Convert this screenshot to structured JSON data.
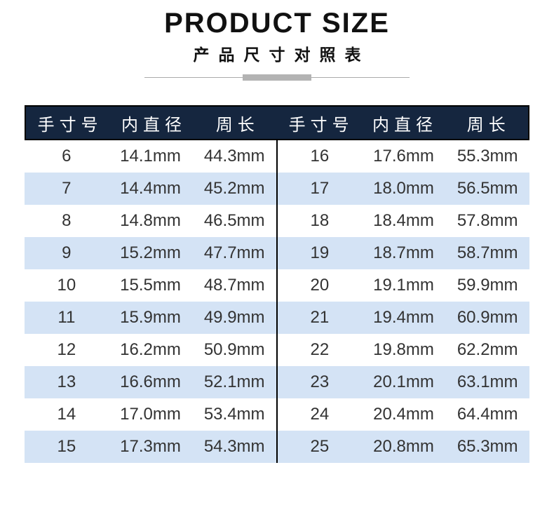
{
  "header": {
    "title": "PRODUCT SIZE",
    "subtitle": "产品尺寸对照表"
  },
  "colors": {
    "header_bg": "#15263f",
    "header_text": "#ffffff",
    "row_alt_bg": "#d4e3f5",
    "row_bg": "#ffffff",
    "body_text": "#333333",
    "table_border": "#000000",
    "divider_gray": "#b3b3b3"
  },
  "chart_data": {
    "type": "table",
    "title": "PRODUCT SIZE",
    "subtitle": "产品尺寸对照表",
    "columns": [
      "手寸号",
      "内直径",
      "周长"
    ],
    "left_rows": [
      [
        "6",
        "14.1mm",
        "44.3mm"
      ],
      [
        "7",
        "14.4mm",
        "45.2mm"
      ],
      [
        "8",
        "14.8mm",
        "46.5mm"
      ],
      [
        "9",
        "15.2mm",
        "47.7mm"
      ],
      [
        "10",
        "15.5mm",
        "48.7mm"
      ],
      [
        "11",
        "15.9mm",
        "49.9mm"
      ],
      [
        "12",
        "16.2mm",
        "50.9mm"
      ],
      [
        "13",
        "16.6mm",
        "52.1mm"
      ],
      [
        "14",
        "17.0mm",
        "53.4mm"
      ],
      [
        "15",
        "17.3mm",
        "54.3mm"
      ]
    ],
    "right_rows": [
      [
        "16",
        "17.6mm",
        "55.3mm"
      ],
      [
        "17",
        "18.0mm",
        "56.5mm"
      ],
      [
        "18",
        "18.4mm",
        "57.8mm"
      ],
      [
        "19",
        "18.7mm",
        "58.7mm"
      ],
      [
        "20",
        "19.1mm",
        "59.9mm"
      ],
      [
        "21",
        "19.4mm",
        "60.9mm"
      ],
      [
        "22",
        "19.8mm",
        "62.2mm"
      ],
      [
        "23",
        "20.1mm",
        "63.1mm"
      ],
      [
        "24",
        "20.4mm",
        "64.4mm"
      ],
      [
        "25",
        "20.8mm",
        "65.3mm"
      ]
    ]
  }
}
